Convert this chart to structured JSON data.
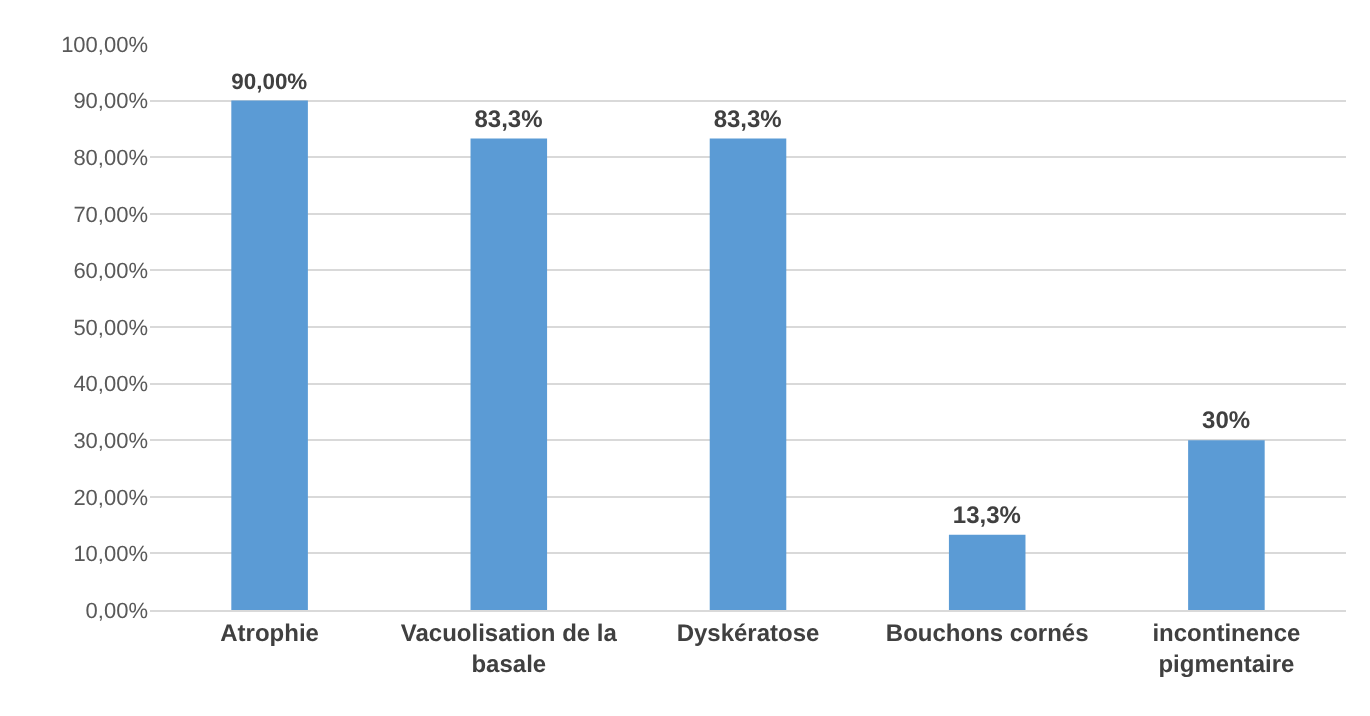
{
  "chart_data": {
    "type": "bar",
    "categories": [
      "Atrophie",
      "Vacuolisation de la basale",
      "Dyskératose",
      "Bouchons cornés",
      "incontinence pigmentaire"
    ],
    "values": [
      90,
      83.3,
      83.3,
      13.3,
      30
    ],
    "value_labels": [
      "90,00%",
      "83,3%",
      "83,3%",
      "13,3%",
      "30%"
    ],
    "color": "#5b9bd5",
    "ylim": [
      0,
      100
    ],
    "yticks": [
      {
        "value": 0,
        "label": "0,00%"
      },
      {
        "value": 10,
        "label": "10,00%"
      },
      {
        "value": 20,
        "label": "20,00%"
      },
      {
        "value": 30,
        "label": "30,00%"
      },
      {
        "value": 40,
        "label": "40,00%"
      },
      {
        "value": 50,
        "label": "50,00%"
      },
      {
        "value": 60,
        "label": "60,00%"
      },
      {
        "value": 70,
        "label": "70,00%"
      },
      {
        "value": 80,
        "label": "80,00%"
      },
      {
        "value": 90,
        "label": "90,00%"
      },
      {
        "value": 100,
        "label": "100,00%"
      }
    ],
    "grid": "y"
  }
}
